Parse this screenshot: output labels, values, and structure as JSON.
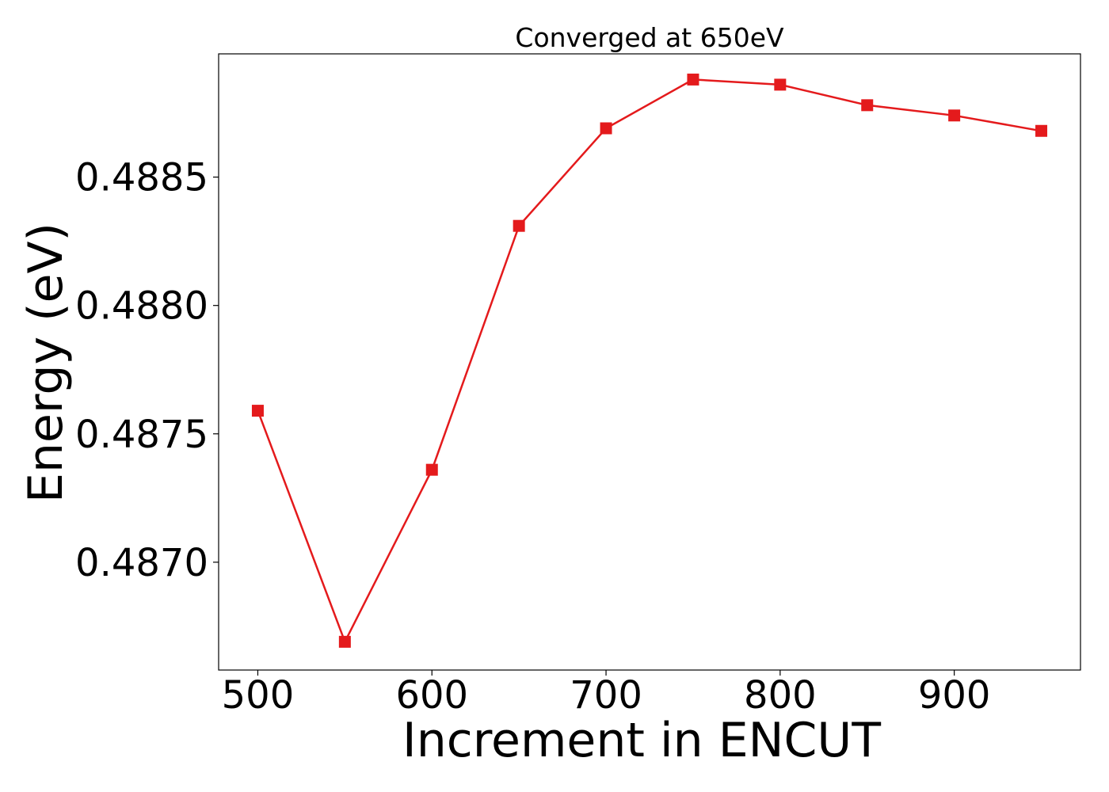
{
  "chart_data": {
    "type": "line",
    "title": "Converged at 650eV",
    "xlabel": "Increment in ENCUT",
    "ylabel": "Energy (eV)",
    "x": [
      500,
      550,
      600,
      650,
      700,
      750,
      800,
      850,
      900,
      950
    ],
    "series": [
      {
        "values": [
          0.48759,
          0.48669,
          0.48736,
          0.48831,
          0.48869,
          0.48888,
          0.48886,
          0.48878,
          0.48874,
          0.48868
        ],
        "color": "#e41a1c",
        "marker": "square"
      }
    ],
    "xticks": [
      500,
      600,
      700,
      800,
      900
    ],
    "xtick_labels": [
      "500",
      "600",
      "700",
      "800",
      "900"
    ],
    "yticks": [
      0.487,
      0.4875,
      0.488,
      0.4885
    ],
    "ytick_labels": [
      "0.4870",
      "0.4875",
      "0.4880",
      "0.4885"
    ],
    "xlim": [
      477.5,
      972.5
    ],
    "ylim": [
      0.48658,
      0.48898
    ],
    "grid": false,
    "legend": "none"
  }
}
